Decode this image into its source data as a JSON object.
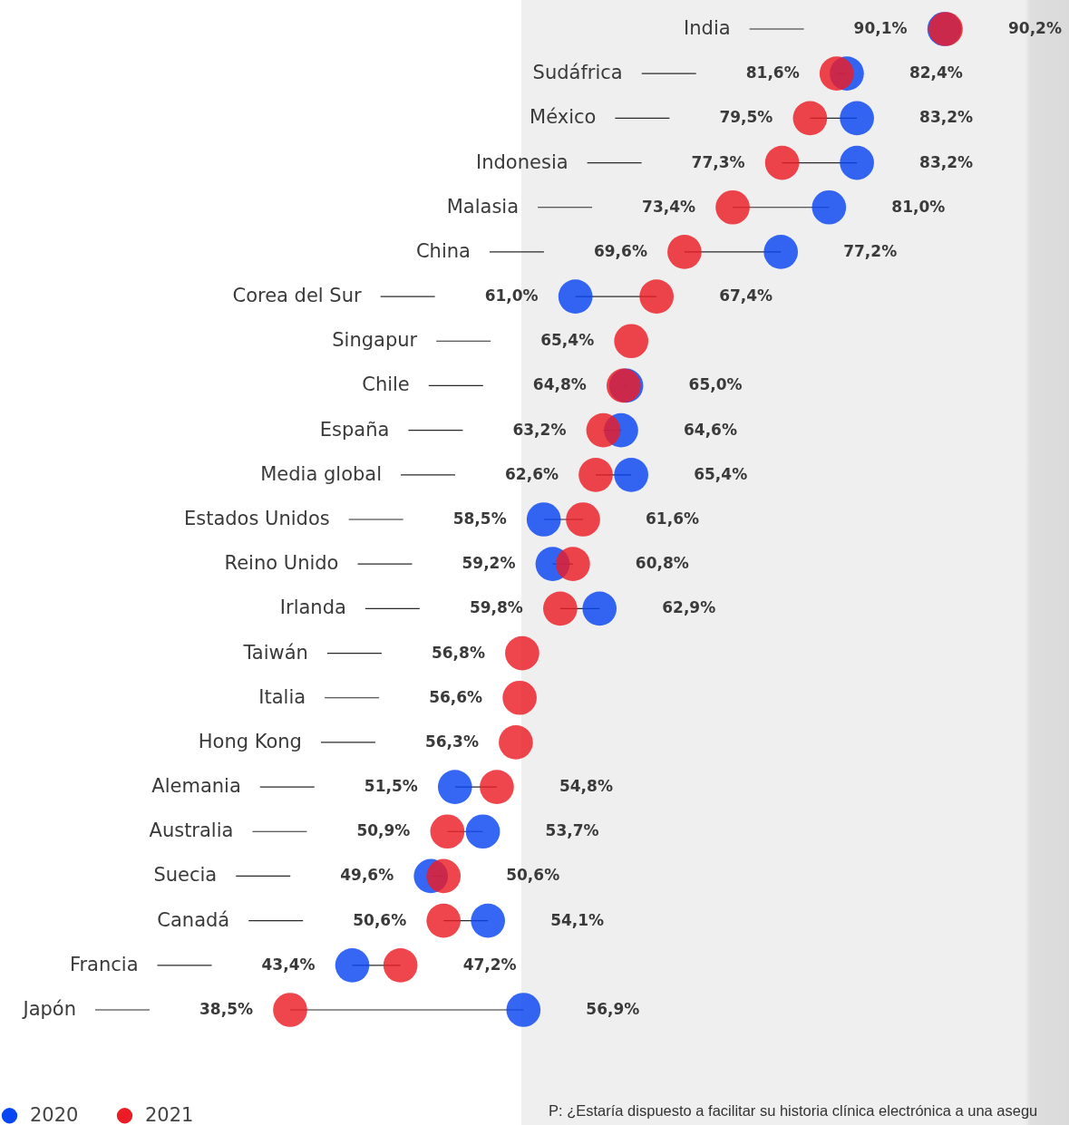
{
  "chart_data": {
    "type": "other",
    "legend": "bottom left",
    "categories": [
      "India",
      "Sudáfrica",
      "México",
      "Indonesia",
      "Malasia",
      "China",
      "Corea del Sur",
      "Singapur",
      "Chile",
      "España",
      "Media global",
      "Estados Unidos",
      "Reino Unido",
      "Irlanda",
      "Taiwán",
      "Italia",
      "Hong Kong",
      "Alemania",
      "Australia",
      "Suecia",
      "Canadá",
      "Francia",
      "Japón"
    ],
    "series": [
      {
        "name": "2020",
        "color": "#0846f2",
        "values": [
          90.1,
          82.4,
          83.2,
          83.2,
          81.0,
          77.2,
          61.0,
          null,
          65.0,
          64.6,
          65.4,
          58.5,
          59.2,
          62.9,
          null,
          null,
          null,
          51.5,
          53.7,
          49.6,
          54.1,
          43.4,
          56.9
        ],
        "value_labels": [
          "90,1%",
          "82,4%",
          "83,2%",
          "83,2%",
          "81,0%",
          "77,2%",
          "61,0%",
          null,
          "65,0%",
          "64,6%",
          "65,4%",
          "58,5%",
          "59,2%",
          "62,9%",
          null,
          null,
          null,
          "51,5%",
          "53,7%",
          "49,6%",
          "54,1%",
          "43,4%",
          "56,9%"
        ]
      },
      {
        "name": "2021",
        "color": "#eb1c26",
        "values": [
          90.2,
          81.6,
          79.5,
          77.3,
          73.4,
          69.6,
          67.4,
          65.4,
          64.8,
          63.2,
          62.6,
          61.6,
          60.8,
          59.8,
          56.8,
          56.6,
          56.3,
          54.8,
          50.9,
          50.6,
          50.6,
          47.2,
          38.5
        ],
        "value_labels": [
          "90,2%",
          "81,6%",
          "79,5%",
          "77,3%",
          "73,4%",
          "69,6%",
          "67,4%",
          "65,4%",
          "64,8%",
          "63,2%",
          "62,6%",
          "61,6%",
          "60,8%",
          "59,8%",
          "56,8%",
          "56,6%",
          "56,3%",
          "54,8%",
          "50,9%",
          "50,6%",
          "50,6%",
          "47,2%",
          "38,5%"
        ]
      }
    ],
    "annotations": [
      "P: ¿Estaría dispuesto a facilitar su historia clínica electrónica a una asegu"
    ]
  }
}
